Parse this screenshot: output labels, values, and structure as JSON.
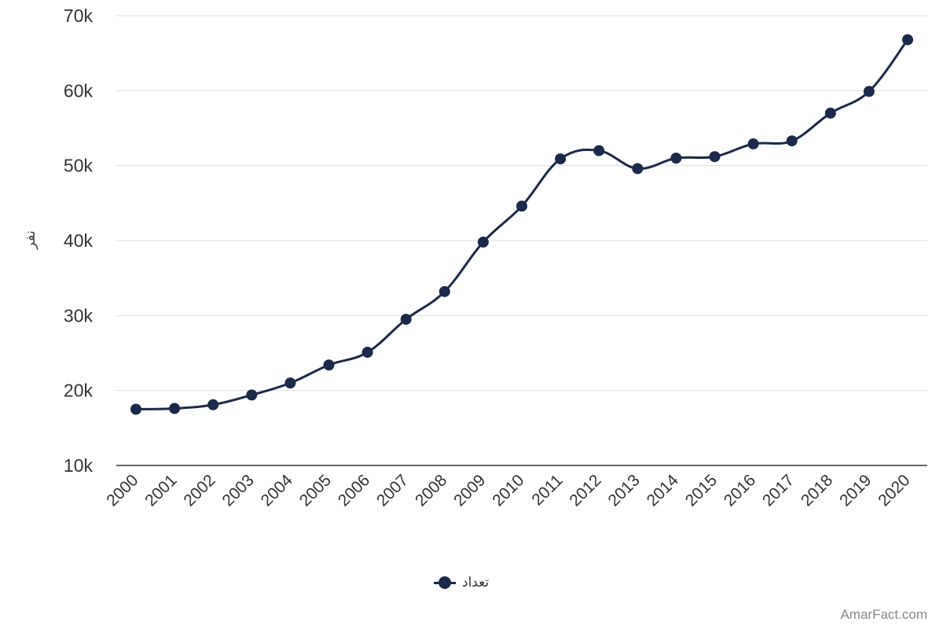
{
  "chart_data": {
    "type": "line",
    "title": "",
    "xlabel": "",
    "ylabel": "نفر",
    "ylim": [
      10000,
      70000
    ],
    "yticks": [
      10000,
      20000,
      30000,
      40000,
      50000,
      60000,
      70000
    ],
    "ytick_labels": [
      "10k",
      "20k",
      "30k",
      "40k",
      "50k",
      "60k",
      "70k"
    ],
    "grid": true,
    "legend_position": "bottom-center",
    "categories": [
      "2000",
      "2001",
      "2002",
      "2003",
      "2004",
      "2005",
      "2006",
      "2007",
      "2008",
      "2009",
      "2010",
      "2011",
      "2012",
      "2013",
      "2014",
      "2015",
      "2016",
      "2017",
      "2018",
      "2019",
      "2020"
    ],
    "series": [
      {
        "name": "تعداد",
        "color": "#1b2a4a",
        "values": [
          17500,
          17600,
          18100,
          19400,
          21000,
          23400,
          25100,
          29500,
          33200,
          39800,
          44600,
          50900,
          52000,
          49600,
          51000,
          51200,
          52900,
          53300,
          57000,
          59900,
          66800
        ]
      }
    ]
  },
  "credit": "AmarFact.com",
  "colors": {
    "grid": "#dddddd",
    "axis": "#333333",
    "series": "#1b2a4a"
  }
}
